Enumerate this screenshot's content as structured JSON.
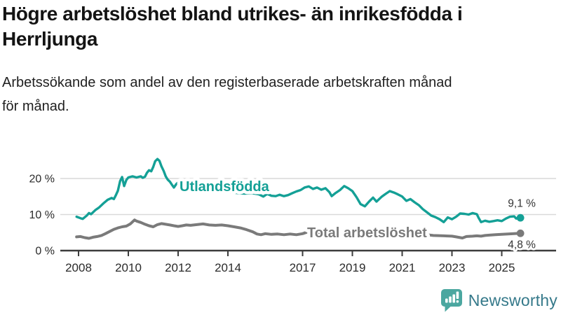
{
  "title": {
    "line1": "Högre arbetslöshet bland utrikes- än inrikesfödda i",
    "line2": "Herrljunga"
  },
  "subtitle": {
    "line1": "Arbetssökande som andel av den registerbaserade arbetskraften månad",
    "line2": "för månad."
  },
  "footer": {
    "brand": "Newsworthy"
  },
  "colors": {
    "accent_teal": "#14a096",
    "series_gray": "#7a7a7a",
    "grid": "#d9d9d9",
    "axis": "#3c3c3c",
    "tick_text": "#2b2b2b",
    "annotation_text": "#333333",
    "logo_icon": "#4ba7a0",
    "logo_text": "#35798a"
  },
  "chart_data": {
    "type": "line",
    "title": "",
    "xlabel": "",
    "ylabel": "",
    "unit": "%",
    "grid": "horizontal",
    "legend_position": "inline-labels",
    "xlim": [
      2007.9,
      2026.2
    ],
    "ylim": [
      0,
      27.5
    ],
    "x_ticks": [
      2008,
      2010,
      2012,
      2014,
      2017,
      2019,
      2021,
      2023,
      2025
    ],
    "y_ticks": [
      {
        "value": 0,
        "label": "0 %"
      },
      {
        "value": 10,
        "label": "10 %"
      },
      {
        "value": 20,
        "label": "20 %"
      }
    ],
    "series": [
      {
        "name": "Utlandsfödda",
        "color": "#14a096",
        "end_value": 9.1,
        "end_label": "9,1 %",
        "points": [
          [
            2007.92,
            9.4
          ],
          [
            2008.08,
            9.0
          ],
          [
            2008.17,
            8.8
          ],
          [
            2008.33,
            9.7
          ],
          [
            2008.42,
            10.4
          ],
          [
            2008.5,
            10.1
          ],
          [
            2008.67,
            11.2
          ],
          [
            2008.83,
            12.0
          ],
          [
            2009.0,
            13.1
          ],
          [
            2009.17,
            14.1
          ],
          [
            2009.33,
            14.6
          ],
          [
            2009.42,
            14.3
          ],
          [
            2009.5,
            15.4
          ],
          [
            2009.58,
            16.6
          ],
          [
            2009.67,
            19.3
          ],
          [
            2009.75,
            20.4
          ],
          [
            2009.83,
            17.9
          ],
          [
            2009.92,
            19.6
          ],
          [
            2010.0,
            20.3
          ],
          [
            2010.17,
            20.6
          ],
          [
            2010.33,
            20.3
          ],
          [
            2010.5,
            20.6
          ],
          [
            2010.58,
            20.2
          ],
          [
            2010.67,
            20.5
          ],
          [
            2010.75,
            21.6
          ],
          [
            2010.83,
            22.3
          ],
          [
            2010.92,
            22.0
          ],
          [
            2011.0,
            23.2
          ],
          [
            2011.08,
            24.8
          ],
          [
            2011.17,
            25.4
          ],
          [
            2011.25,
            24.9
          ],
          [
            2011.33,
            23.4
          ],
          [
            2011.42,
            22.1
          ],
          [
            2011.5,
            20.6
          ],
          [
            2011.58,
            19.7
          ],
          [
            2011.67,
            19.1
          ],
          [
            2011.75,
            18.3
          ],
          [
            2011.83,
            17.5
          ],
          [
            2011.92,
            18.4
          ],
          [
            2012.0,
            18.9
          ],
          [
            2012.08,
            18.4
          ],
          [
            2012.17,
            17.8
          ],
          [
            2012.25,
            17.2
          ],
          [
            2012.42,
            17.6
          ],
          [
            2012.67,
            17.2
          ],
          [
            2013.0,
            16.9
          ],
          [
            2013.33,
            16.6
          ],
          [
            2013.67,
            16.4
          ],
          [
            2014.0,
            16.2
          ],
          [
            2014.33,
            16.0
          ],
          [
            2014.67,
            15.8
          ],
          [
            2015.0,
            15.9
          ],
          [
            2015.25,
            15.6
          ],
          [
            2015.42,
            15.0
          ],
          [
            2015.58,
            15.7
          ],
          [
            2015.75,
            15.2
          ],
          [
            2015.92,
            15.1
          ],
          [
            2016.08,
            15.5
          ],
          [
            2016.25,
            15.1
          ],
          [
            2016.42,
            15.4
          ],
          [
            2016.58,
            15.9
          ],
          [
            2016.75,
            16.4
          ],
          [
            2016.92,
            16.8
          ],
          [
            2017.08,
            17.5
          ],
          [
            2017.25,
            17.8
          ],
          [
            2017.42,
            17.1
          ],
          [
            2017.58,
            17.5
          ],
          [
            2017.75,
            16.9
          ],
          [
            2017.92,
            17.3
          ],
          [
            2018.08,
            16.2
          ],
          [
            2018.17,
            15.1
          ],
          [
            2018.33,
            16.0
          ],
          [
            2018.5,
            16.8
          ],
          [
            2018.67,
            17.9
          ],
          [
            2018.83,
            17.3
          ],
          [
            2019.0,
            16.5
          ],
          [
            2019.17,
            14.8
          ],
          [
            2019.33,
            12.9
          ],
          [
            2019.5,
            12.3
          ],
          [
            2019.67,
            13.6
          ],
          [
            2019.83,
            14.7
          ],
          [
            2019.97,
            13.6
          ],
          [
            2020.17,
            14.9
          ],
          [
            2020.33,
            15.7
          ],
          [
            2020.5,
            16.5
          ],
          [
            2020.67,
            16.1
          ],
          [
            2020.83,
            15.6
          ],
          [
            2021.0,
            15.0
          ],
          [
            2021.17,
            13.8
          ],
          [
            2021.33,
            14.3
          ],
          [
            2021.5,
            13.4
          ],
          [
            2021.67,
            12.6
          ],
          [
            2021.83,
            11.5
          ],
          [
            2022.0,
            10.6
          ],
          [
            2022.17,
            9.7
          ],
          [
            2022.33,
            9.3
          ],
          [
            2022.5,
            8.7
          ],
          [
            2022.67,
            7.9
          ],
          [
            2022.83,
            9.2
          ],
          [
            2023.0,
            8.7
          ],
          [
            2023.17,
            9.4
          ],
          [
            2023.33,
            10.3
          ],
          [
            2023.5,
            10.2
          ],
          [
            2023.67,
            10.0
          ],
          [
            2023.83,
            10.4
          ],
          [
            2024.0,
            10.1
          ],
          [
            2024.08,
            9.0
          ],
          [
            2024.17,
            7.9
          ],
          [
            2024.33,
            8.3
          ],
          [
            2024.5,
            8.0
          ],
          [
            2024.67,
            8.2
          ],
          [
            2024.83,
            8.4
          ],
          [
            2025.0,
            8.2
          ],
          [
            2025.17,
            8.9
          ],
          [
            2025.33,
            9.4
          ],
          [
            2025.5,
            9.5
          ],
          [
            2025.58,
            8.9
          ],
          [
            2025.75,
            9.1
          ]
        ]
      },
      {
        "name": "Total arbetslöshet",
        "color": "#7a7a7a",
        "end_value": 4.8,
        "end_label": "4,8 %",
        "points": [
          [
            2007.92,
            3.8
          ],
          [
            2008.08,
            3.9
          ],
          [
            2008.25,
            3.6
          ],
          [
            2008.42,
            3.4
          ],
          [
            2008.58,
            3.7
          ],
          [
            2008.75,
            3.9
          ],
          [
            2008.92,
            4.2
          ],
          [
            2009.08,
            4.7
          ],
          [
            2009.25,
            5.3
          ],
          [
            2009.42,
            5.9
          ],
          [
            2009.58,
            6.3
          ],
          [
            2009.75,
            6.6
          ],
          [
            2009.92,
            6.8
          ],
          [
            2010.08,
            7.4
          ],
          [
            2010.25,
            8.5
          ],
          [
            2010.33,
            8.2
          ],
          [
            2010.5,
            7.8
          ],
          [
            2010.67,
            7.3
          ],
          [
            2010.83,
            6.9
          ],
          [
            2011.0,
            6.6
          ],
          [
            2011.17,
            7.2
          ],
          [
            2011.33,
            7.5
          ],
          [
            2011.5,
            7.3
          ],
          [
            2011.67,
            7.1
          ],
          [
            2011.83,
            6.9
          ],
          [
            2012.0,
            6.7
          ],
          [
            2012.17,
            6.9
          ],
          [
            2012.33,
            7.1
          ],
          [
            2012.5,
            7.0
          ],
          [
            2012.75,
            7.2
          ],
          [
            2013.0,
            7.4
          ],
          [
            2013.25,
            7.1
          ],
          [
            2013.5,
            7.0
          ],
          [
            2013.75,
            7.1
          ],
          [
            2014.0,
            6.9
          ],
          [
            2014.25,
            6.6
          ],
          [
            2014.5,
            6.3
          ],
          [
            2014.75,
            5.8
          ],
          [
            2015.0,
            5.2
          ],
          [
            2015.17,
            4.6
          ],
          [
            2015.33,
            4.4
          ],
          [
            2015.5,
            4.7
          ],
          [
            2015.75,
            4.5
          ],
          [
            2016.0,
            4.6
          ],
          [
            2016.25,
            4.4
          ],
          [
            2016.5,
            4.6
          ],
          [
            2016.75,
            4.4
          ],
          [
            2017.0,
            4.7
          ],
          [
            2017.17,
            5.1
          ],
          [
            2017.42,
            4.8
          ],
          [
            2017.75,
            4.6
          ],
          [
            2018.0,
            4.5
          ],
          [
            2018.5,
            4.4
          ],
          [
            2019.0,
            4.3
          ],
          [
            2019.5,
            4.5
          ],
          [
            2020.0,
            5.3
          ],
          [
            2020.42,
            5.7
          ],
          [
            2020.83,
            5.4
          ],
          [
            2021.25,
            5.0
          ],
          [
            2021.75,
            4.6
          ],
          [
            2022.25,
            4.2
          ],
          [
            2022.67,
            4.1
          ],
          [
            2023.0,
            4.0
          ],
          [
            2023.17,
            3.8
          ],
          [
            2023.42,
            3.5
          ],
          [
            2023.58,
            3.9
          ],
          [
            2023.83,
            4.0
          ],
          [
            2024.0,
            4.1
          ],
          [
            2024.17,
            4.0
          ],
          [
            2024.33,
            4.2
          ],
          [
            2024.5,
            4.3
          ],
          [
            2024.75,
            4.4
          ],
          [
            2025.0,
            4.5
          ],
          [
            2025.25,
            4.6
          ],
          [
            2025.5,
            4.7
          ],
          [
            2025.75,
            4.8
          ]
        ]
      }
    ]
  }
}
